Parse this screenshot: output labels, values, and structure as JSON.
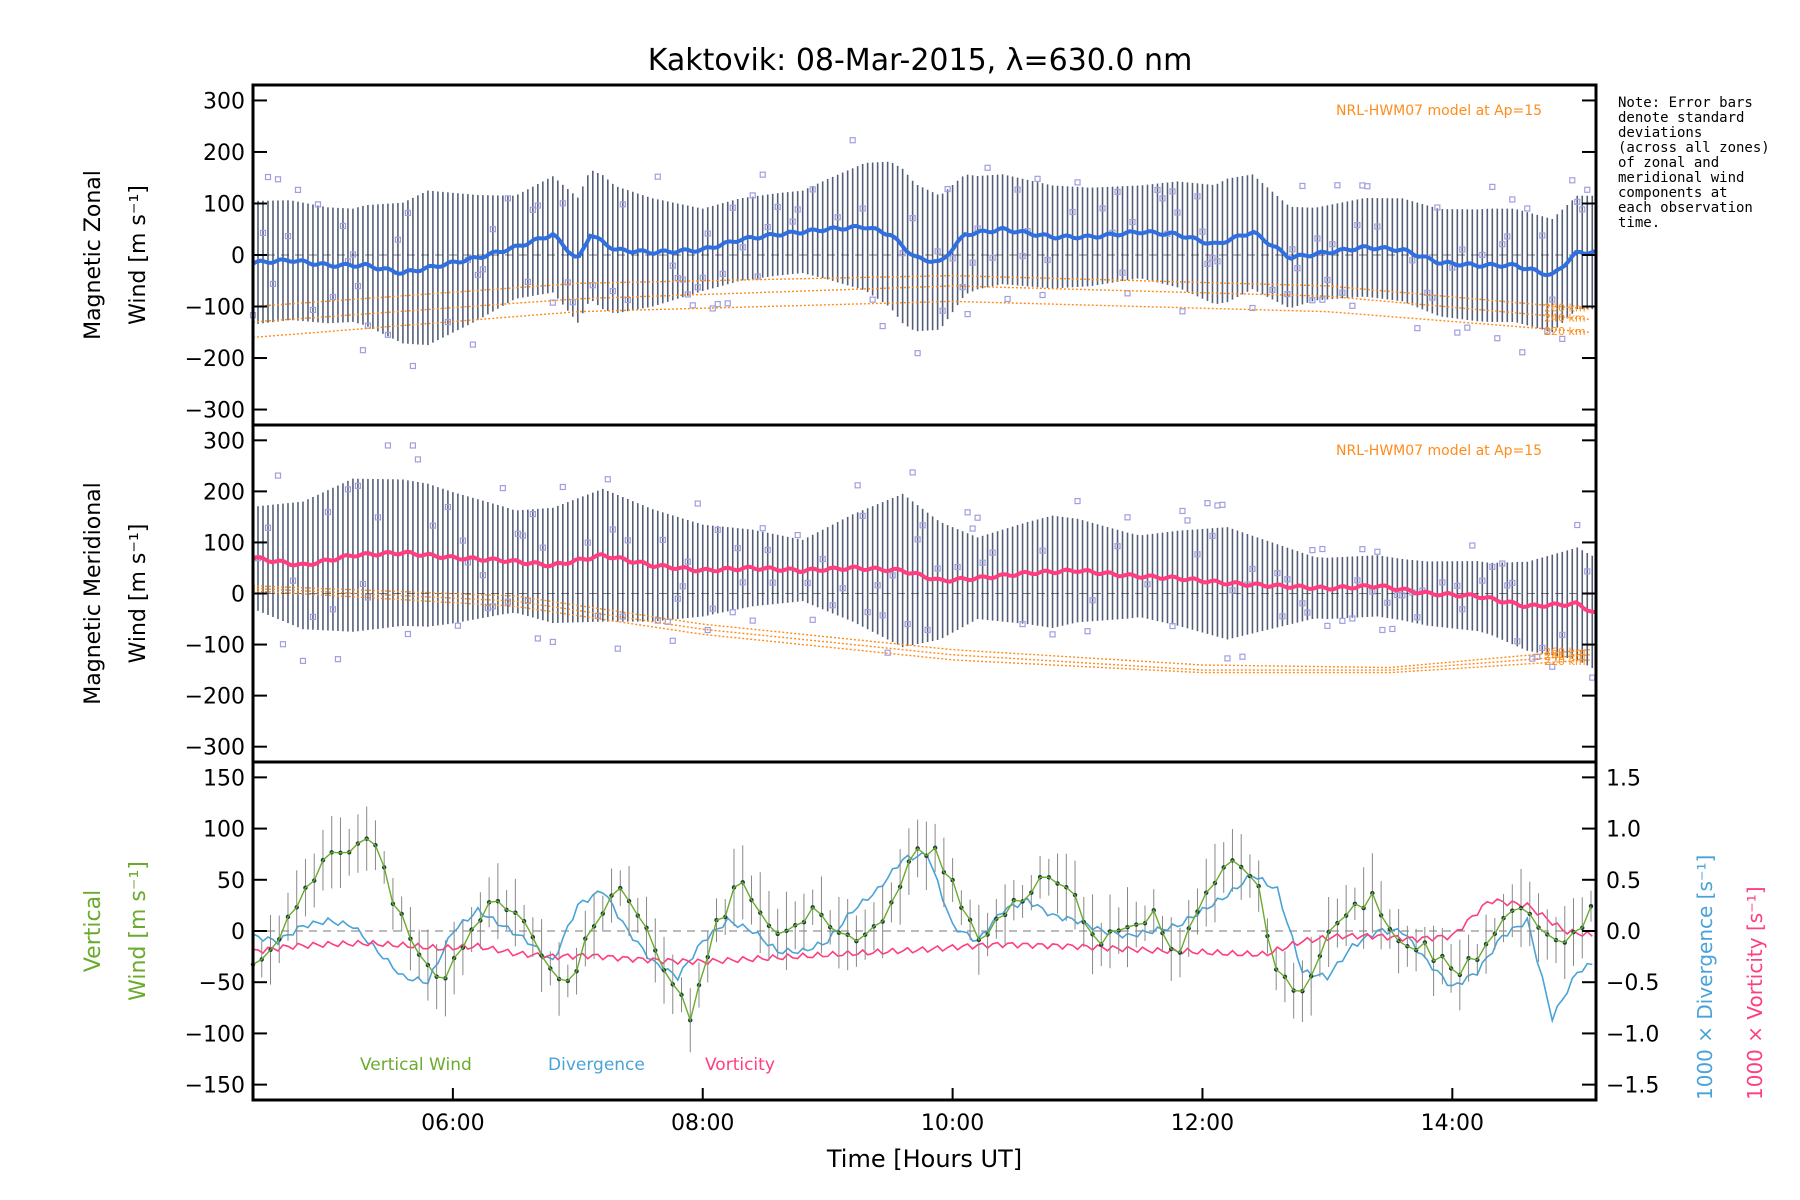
{
  "title": "Kaktovik: 08-Mar-2015, λ=630.0 nm",
  "note_lines": [
    "Note: Error bars",
    "denote standard",
    "deviations",
    "(across all zones)",
    "of zonal and",
    "meridional wind",
    "components at",
    "each observation",
    "time."
  ],
  "colors": {
    "zonal_mean": "#2f6fe0",
    "meridional_mean": "#ff3d7f",
    "vertical": "#6aab2e",
    "divergence": "#4aa3d8",
    "vorticity": "#ff3d7f",
    "model": "#ff8c1a",
    "scatter": "#9f9fe0",
    "bars": "#1b2a4a"
  },
  "icons": [
    "scatter-square-marker"
  ],
  "chart_data": [
    {
      "type": "line",
      "panel": "zonal",
      "ylabel_line1": "Magnetic Zonal",
      "ylabel_line2": "Wind [m s⁻¹]",
      "ylim": [
        -330,
        330
      ],
      "yticks": [
        300,
        200,
        100,
        0,
        -100,
        -200,
        -300
      ],
      "xlim": [
        4.4,
        15.15
      ],
      "model_label": "NRL-HWM07 model at Ap=15",
      "model_alt_labels": [
        "260 km",
        "240 km",
        "220 km"
      ],
      "model_curves": [
        {
          "x": [
            4.4,
            7,
            10,
            13,
            15.1
          ],
          "y": [
            -100,
            -55,
            -40,
            -60,
            -105
          ]
        },
        {
          "x": [
            4.4,
            7,
            10,
            13,
            15.1
          ],
          "y": [
            -130,
            -85,
            -60,
            -80,
            -125
          ]
        },
        {
          "x": [
            4.4,
            7,
            10,
            13,
            15.1
          ],
          "y": [
            -160,
            -110,
            -90,
            -110,
            -150
          ]
        }
      ],
      "mean_series": {
        "x": [
          4.4,
          4.7,
          5.0,
          5.3,
          5.6,
          5.9,
          6.2,
          6.5,
          6.8,
          7.0,
          7.1,
          7.3,
          7.6,
          8.0,
          8.3,
          8.6,
          9.0,
          9.3,
          9.5,
          9.7,
          9.9,
          10.1,
          10.4,
          10.8,
          11.1,
          11.5,
          11.8,
          12.1,
          12.4,
          12.7,
          13.0,
          13.3,
          13.6,
          13.9,
          14.2,
          14.5,
          14.8,
          15.0,
          15.15
        ],
        "y": [
          -15,
          -10,
          -20,
          -20,
          -35,
          -20,
          -5,
          15,
          40,
          -10,
          40,
          10,
          5,
          10,
          30,
          40,
          50,
          55,
          40,
          -5,
          -15,
          40,
          50,
          35,
          35,
          45,
          40,
          20,
          45,
          -5,
          5,
          15,
          10,
          -15,
          -20,
          -20,
          -40,
          5,
          5
        ]
      },
      "bar_spread": [
        {
          "x": [
            4.4,
            5.2,
            5.8,
            6.5,
            7.2,
            8.0,
            8.8,
            9.6,
            10.2,
            10.8,
            11.5,
            12.2,
            12.9,
            13.6,
            14.3,
            15.0
          ],
          "half": [
            120,
            110,
            150,
            100,
            130,
            80,
            80,
            150,
            110,
            100,
            90,
            120,
            90,
            100,
            110,
            110
          ]
        }
      ]
    },
    {
      "type": "line",
      "panel": "meridional",
      "ylabel_line1": "Magnetic Meridional",
      "ylabel_line2": "Wind [m s⁻¹]",
      "ylim": [
        -330,
        330
      ],
      "yticks": [
        300,
        200,
        100,
        0,
        -100,
        -200,
        -300
      ],
      "xlim": [
        4.4,
        15.15
      ],
      "model_label": "NRL-HWM07 model at Ap=15",
      "model_alt_labels": [
        "260 km",
        "240 km",
        "220 km"
      ],
      "model_curves": [
        {
          "x": [
            4.4,
            6.5,
            8,
            10,
            12,
            13.5,
            15.1
          ],
          "y": [
            15,
            -5,
            -60,
            -110,
            -140,
            -145,
            -110
          ]
        },
        {
          "x": [
            4.4,
            6.5,
            8,
            10,
            12,
            13.5,
            15.1
          ],
          "y": [
            10,
            -15,
            -70,
            -120,
            -150,
            -150,
            -120
          ]
        },
        {
          "x": [
            4.4,
            6.5,
            8,
            10,
            12,
            13.5,
            15.1
          ],
          "y": [
            5,
            -25,
            -80,
            -130,
            -155,
            -155,
            -130
          ]
        }
      ],
      "mean_series": {
        "x": [
          4.4,
          4.8,
          5.2,
          5.6,
          6.0,
          6.4,
          6.8,
          7.2,
          7.6,
          8.0,
          8.4,
          8.8,
          9.2,
          9.6,
          9.9,
          10.2,
          10.6,
          11.0,
          11.4,
          11.8,
          12.2,
          12.6,
          13.0,
          13.4,
          13.8,
          14.2,
          14.6,
          15.0,
          15.15
        ],
        "y": [
          70,
          55,
          75,
          80,
          70,
          65,
          55,
          75,
          55,
          45,
          50,
          45,
          50,
          45,
          25,
          30,
          40,
          45,
          35,
          30,
          20,
          15,
          10,
          15,
          0,
          -5,
          -25,
          -20,
          -40
        ]
      },
      "bar_spread": [
        {
          "x": [
            4.4,
            5.2,
            5.8,
            6.5,
            7.2,
            8.0,
            8.8,
            9.6,
            10.2,
            10.8,
            11.5,
            12.2,
            12.9,
            13.6,
            14.3,
            15.0
          ],
          "half": [
            100,
            150,
            140,
            100,
            130,
            90,
            60,
            150,
            80,
            110,
            80,
            110,
            60,
            60,
            70,
            110
          ]
        }
      ]
    },
    {
      "type": "line",
      "panel": "vertical",
      "ylabel_line1": "Vertical",
      "ylabel_line2": "Wind [m s⁻¹]",
      "ylim": [
        -165,
        165
      ],
      "yticks": [
        150,
        100,
        50,
        0,
        -50,
        -100,
        -150
      ],
      "right_yticks": [
        "1.5",
        "1.0",
        "0.5",
        "0.0",
        "−0.5",
        "−1.0",
        "−1.5"
      ],
      "right_ylabel_divergence": "1000 × Divergence [s⁻¹]",
      "right_ylabel_vorticity": "1000 × Vorticity [s⁻¹]",
      "xlim": [
        4.4,
        15.15
      ],
      "xticks": [
        "06:00",
        "08:00",
        "10:00",
        "12:00",
        "14:00"
      ],
      "xtick_values": [
        6,
        8,
        10,
        12,
        14
      ],
      "xlabel": "Time [Hours UT]",
      "legend": [
        "Vertical Wind",
        "Divergence",
        "Vorticity"
      ],
      "series": [
        {
          "name": "Vertical Wind",
          "x": [
            4.4,
            4.6,
            4.8,
            5.0,
            5.2,
            5.35,
            5.5,
            5.7,
            5.9,
            6.1,
            6.3,
            6.5,
            6.7,
            6.9,
            7.1,
            7.3,
            7.5,
            7.7,
            7.9,
            8.1,
            8.3,
            8.5,
            8.7,
            8.9,
            9.1,
            9.3,
            9.5,
            9.7,
            9.85,
            10.0,
            10.2,
            10.4,
            10.6,
            10.8,
            11.0,
            11.2,
            11.4,
            11.6,
            11.8,
            12.0,
            12.2,
            12.4,
            12.6,
            12.8,
            13.0,
            13.2,
            13.4,
            13.6,
            13.8,
            14.0,
            14.2,
            14.4,
            14.6,
            14.8,
            15.0,
            15.15
          ],
          "y": [
            -35,
            -5,
            30,
            80,
            85,
            90,
            40,
            -25,
            -50,
            -15,
            35,
            15,
            -20,
            -55,
            -5,
            40,
            10,
            -40,
            -85,
            5,
            45,
            15,
            -5,
            30,
            -5,
            -10,
            25,
            75,
            80,
            50,
            -10,
            10,
            40,
            50,
            25,
            -10,
            0,
            15,
            -20,
            30,
            65,
            60,
            -35,
            -65,
            -10,
            25,
            30,
            -20,
            -15,
            -40,
            -30,
            20,
            25,
            -10,
            0,
            30
          ]
        },
        {
          "name": "Divergence",
          "x": [
            4.4,
            4.6,
            4.8,
            5.0,
            5.2,
            5.4,
            5.6,
            5.8,
            6.0,
            6.2,
            6.4,
            6.6,
            6.8,
            7.0,
            7.2,
            7.4,
            7.6,
            7.8,
            8.0,
            8.2,
            8.4,
            8.6,
            8.8,
            9.0,
            9.2,
            9.4,
            9.6,
            9.8,
            10.0,
            10.2,
            10.4,
            10.6,
            10.8,
            11.0,
            11.2,
            11.4,
            11.6,
            11.8,
            12.0,
            12.2,
            12.4,
            12.6,
            12.8,
            13.0,
            13.2,
            13.4,
            13.6,
            13.8,
            14.0,
            14.2,
            14.4,
            14.6,
            14.8,
            15.0,
            15.15
          ],
          "y": [
            -0.05,
            -0.1,
            0.05,
            0.1,
            0.05,
            -0.2,
            -0.45,
            -0.5,
            0.0,
            0.2,
            0.05,
            -0.1,
            -0.3,
            0.25,
            0.4,
            0.0,
            -0.3,
            -0.45,
            -0.1,
            0.1,
            0.0,
            -0.2,
            -0.2,
            -0.1,
            0.2,
            0.4,
            0.7,
            0.75,
            0.05,
            -0.1,
            0.2,
            0.3,
            0.15,
            0.1,
            0.0,
            -0.05,
            0.0,
            0.05,
            0.2,
            0.35,
            0.55,
            0.4,
            -0.4,
            -0.45,
            -0.15,
            0.0,
            0.0,
            -0.3,
            -0.55,
            -0.4,
            -0.05,
            0.1,
            -0.85,
            -0.4,
            -0.3
          ]
        },
        {
          "name": "Vorticity",
          "x": [
            4.4,
            4.7,
            5.0,
            5.3,
            5.6,
            5.9,
            6.2,
            6.5,
            6.8,
            7.1,
            7.4,
            7.7,
            8.0,
            8.3,
            8.6,
            8.9,
            9.2,
            9.5,
            9.8,
            10.1,
            10.4,
            10.7,
            11.0,
            11.3,
            11.6,
            11.9,
            12.2,
            12.5,
            12.8,
            13.1,
            13.4,
            13.7,
            14.0,
            14.3,
            14.6,
            14.9,
            15.15
          ],
          "y": [
            -0.2,
            -0.15,
            -0.13,
            -0.12,
            -0.14,
            -0.17,
            -0.15,
            -0.22,
            -0.25,
            -0.24,
            -0.27,
            -0.29,
            -0.3,
            -0.28,
            -0.26,
            -0.24,
            -0.22,
            -0.2,
            -0.18,
            -0.15,
            -0.13,
            -0.14,
            -0.15,
            -0.17,
            -0.19,
            -0.2,
            -0.22,
            -0.23,
            -0.1,
            -0.05,
            -0.05,
            -0.08,
            -0.05,
            0.3,
            0.25,
            0.0,
            -0.05
          ]
        }
      ]
    }
  ]
}
